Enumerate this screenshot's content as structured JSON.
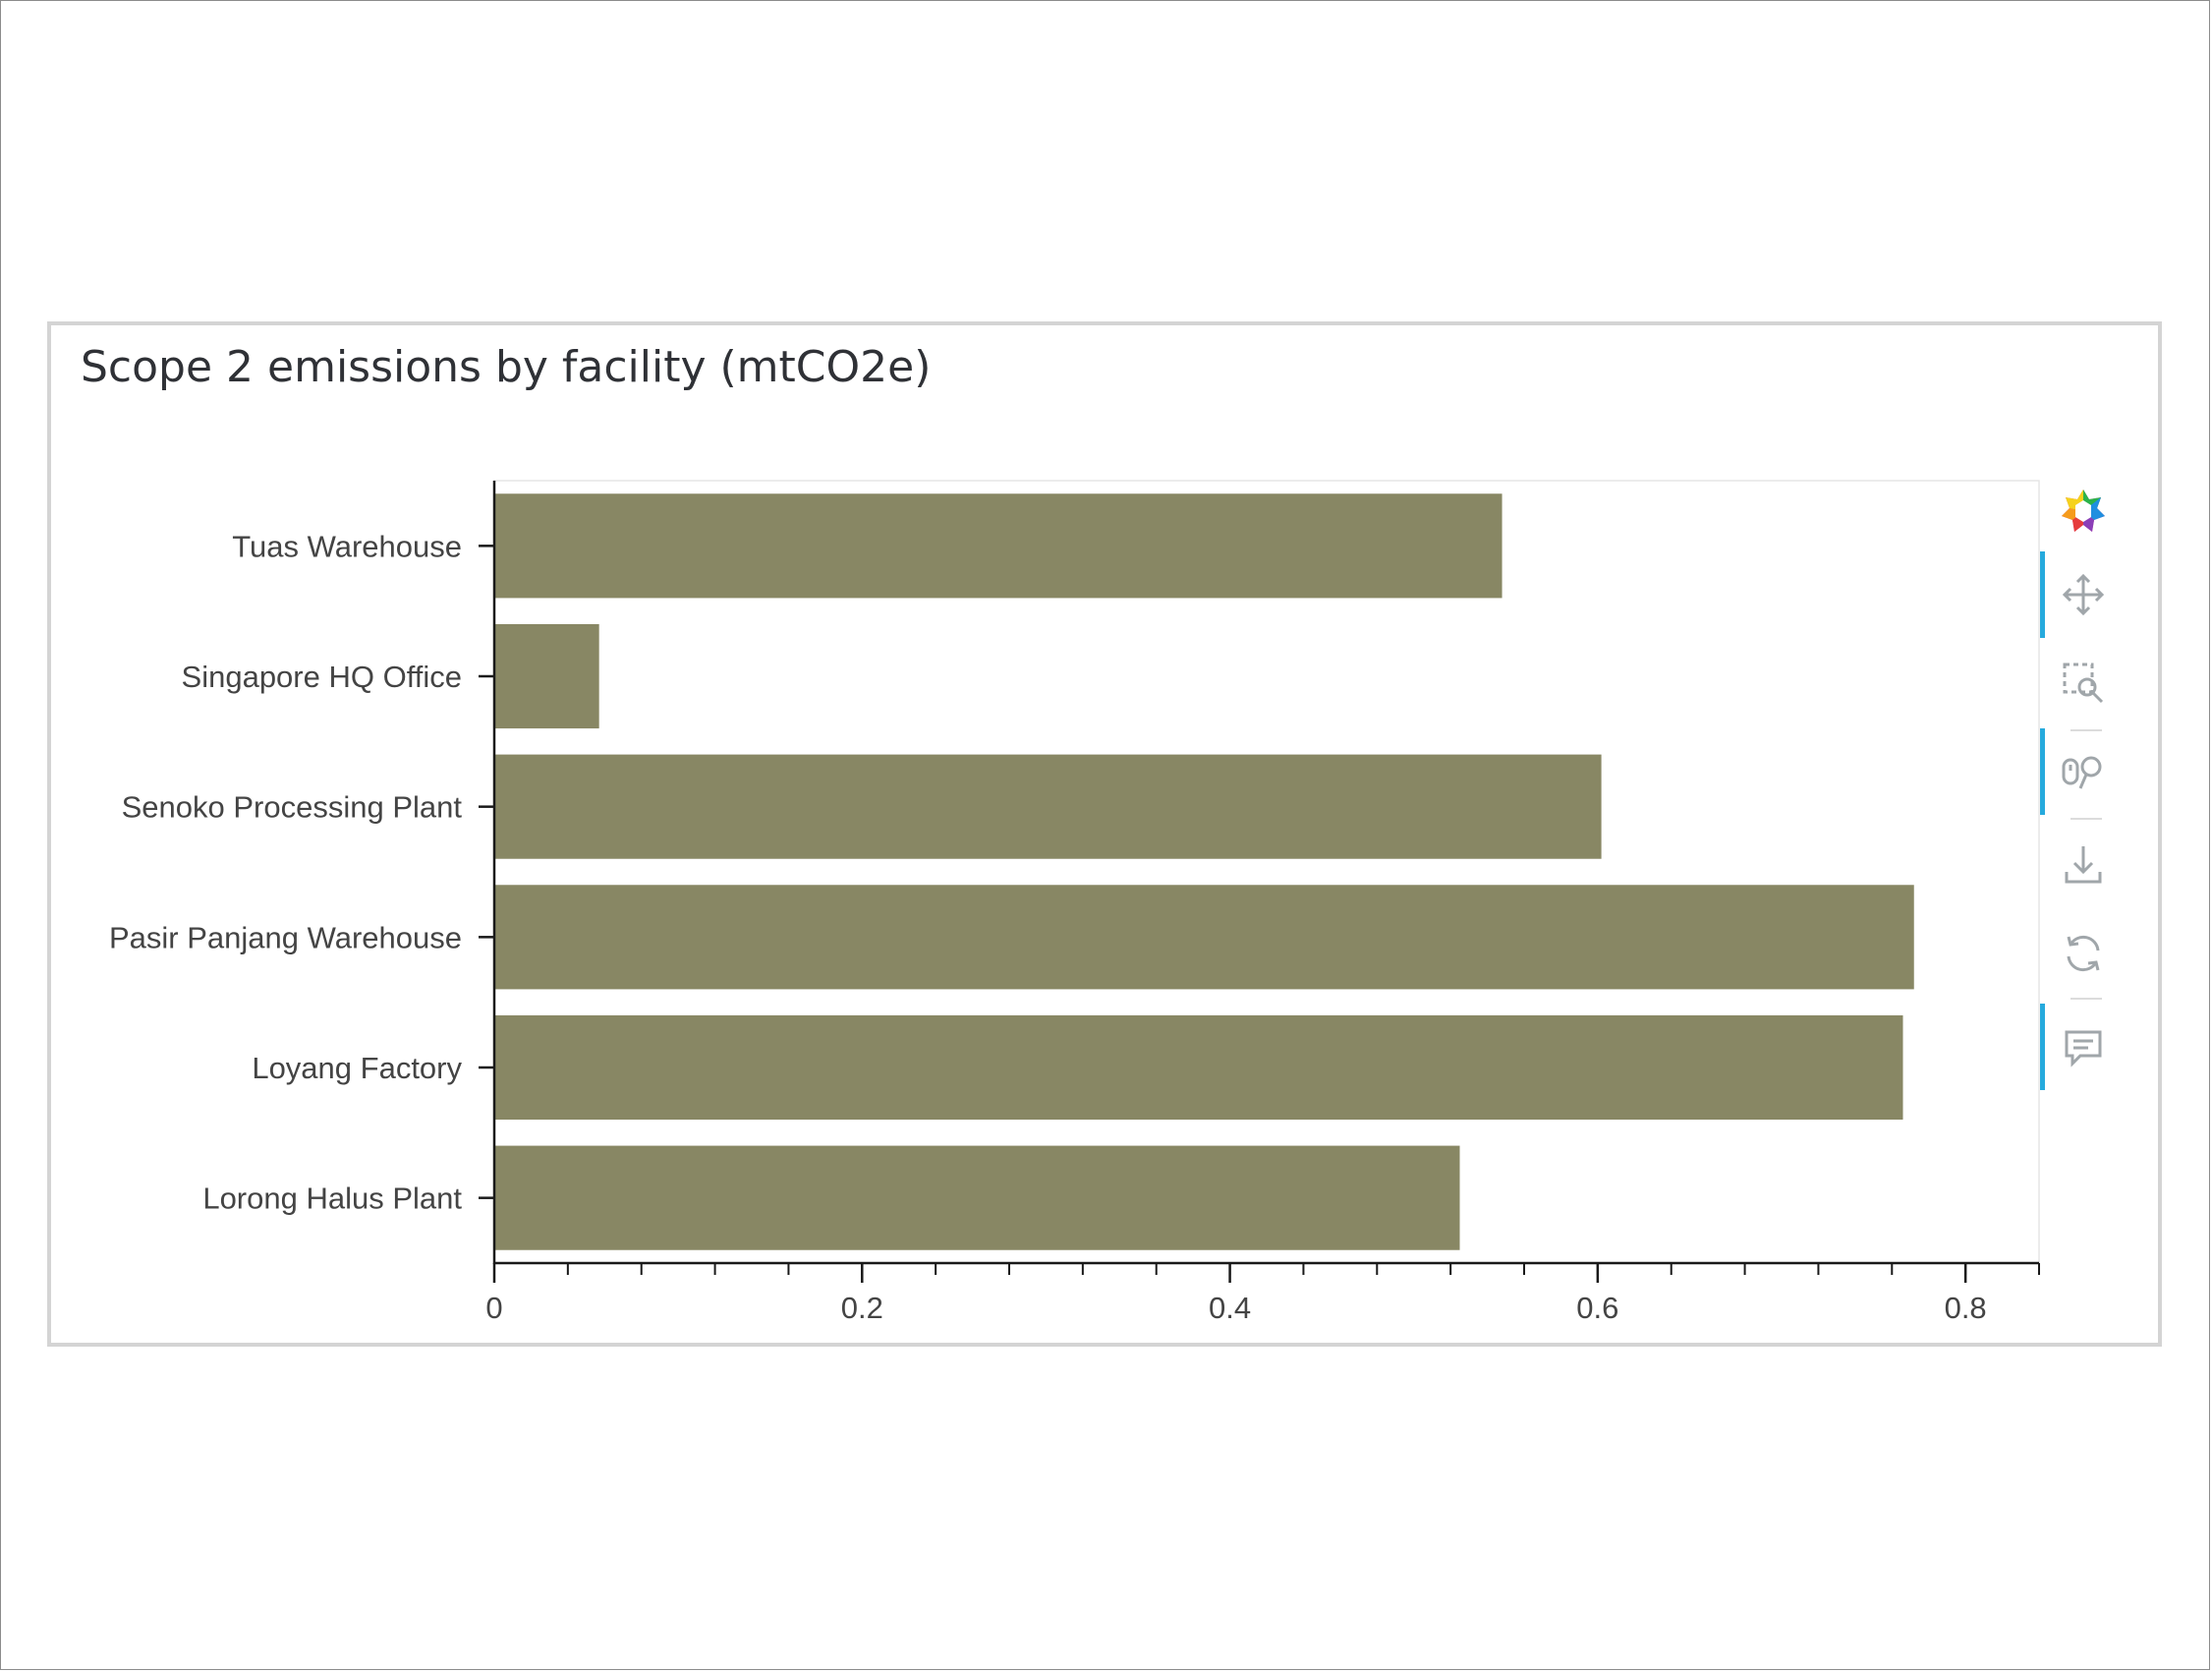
{
  "panel": {
    "title": "Scope 2 emissions by facility (mtCO2e)"
  },
  "colors": {
    "bar": "#888764",
    "axis": "#1a1a1a",
    "tick_label": "#444444",
    "tool_icon": "#a0a6aa",
    "active_tool": "#26aadd"
  },
  "chart_data": {
    "type": "bar",
    "orientation": "horizontal",
    "categories": [
      "Tuas Warehouse",
      "Singapore HQ Office",
      "Senoko Processing Plant",
      "Pasir Panjang Warehouse",
      "Loyang Factory",
      "Lorong Halus Plant"
    ],
    "values": [
      0.548,
      0.057,
      0.602,
      0.772,
      0.766,
      0.525
    ],
    "xlim": [
      0,
      0.84
    ],
    "xticks": [
      0,
      0.2,
      0.4,
      0.6,
      0.8
    ],
    "xtick_labels": [
      "0",
      "0.2",
      "0.4",
      "0.6",
      "0.8"
    ],
    "title": "",
    "xlabel": "",
    "ylabel": "",
    "grid": false
  },
  "toolbar": {
    "tools": [
      {
        "icon": "bokeh-logo-icon",
        "active": false
      },
      {
        "icon": "pan-icon",
        "active": true
      },
      {
        "icon": "box-zoom-icon",
        "active": false
      },
      {
        "icon": "wheel-zoom-icon",
        "active": true
      },
      {
        "icon": "save-icon",
        "active": false
      },
      {
        "icon": "reset-icon",
        "active": false
      },
      {
        "icon": "hover-icon",
        "active": true
      }
    ]
  }
}
